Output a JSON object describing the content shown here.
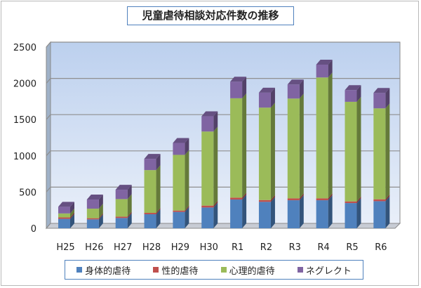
{
  "chart_data": {
    "type": "bar",
    "stacked": true,
    "three_d": true,
    "title": "児童虐待相談対応件数の推移",
    "categories": [
      "H25",
      "H26",
      "H27",
      "H28",
      "H29",
      "H30",
      "R1",
      "R2",
      "R3",
      "R4",
      "R5",
      "R6"
    ],
    "series": [
      {
        "name": "身体的虐待",
        "color": "#4f81bd",
        "values": [
          130,
          123,
          142,
          194,
          226,
          287,
          397,
          365,
          387,
          387,
          348,
          374
        ]
      },
      {
        "name": "性的虐待",
        "color": "#c0504d",
        "values": [
          20,
          16,
          19,
          19,
          19,
          26,
          26,
          25,
          26,
          26,
          23,
          26
        ]
      },
      {
        "name": "心理的虐待",
        "color": "#9bbb59",
        "values": [
          55,
          132,
          242,
          590,
          768,
          1022,
          1371,
          1275,
          1377,
          1668,
          1374,
          1255
        ]
      },
      {
        "name": "ネグレクト",
        "color": "#8064a2",
        "values": [
          92,
          126,
          129,
          155,
          164,
          210,
          229,
          206,
          194,
          177,
          161,
          213
        ]
      }
    ],
    "ylim": [
      0,
      2500
    ],
    "yticks": [
      "0",
      "500",
      "1000",
      "1500",
      "2000",
      "2500"
    ],
    "grid": true,
    "legend": "bottom"
  }
}
